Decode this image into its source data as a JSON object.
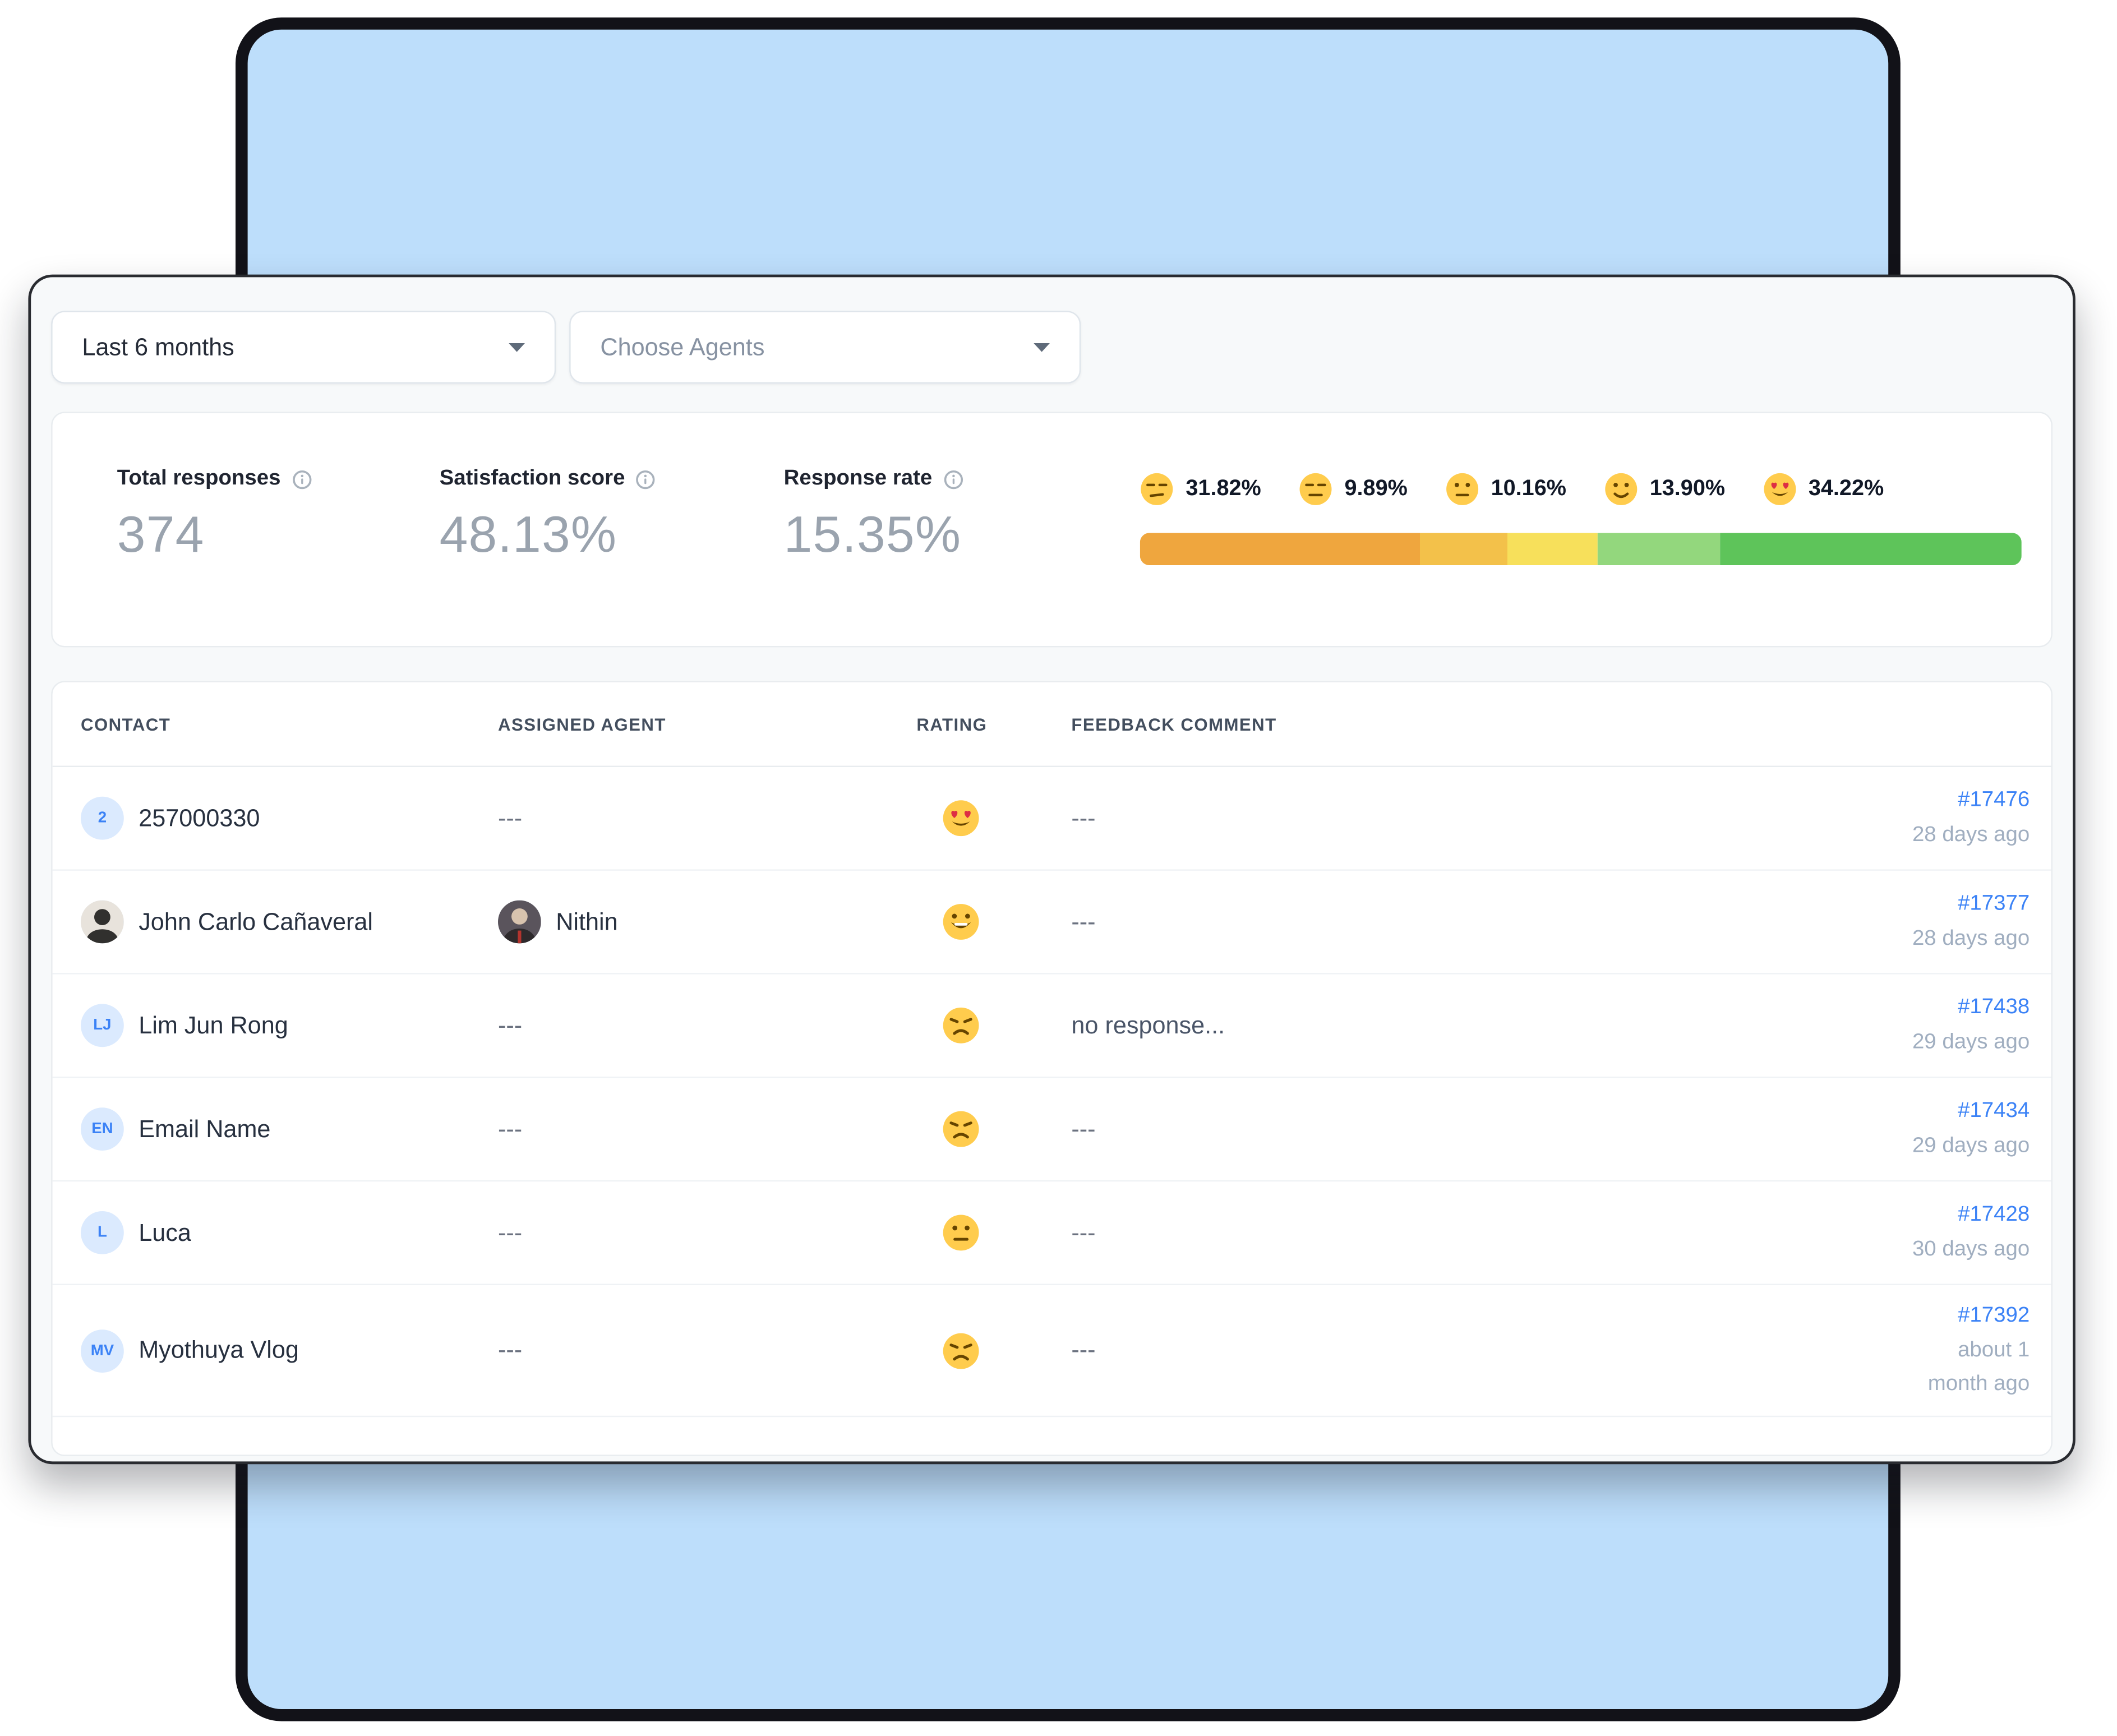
{
  "filters": {
    "date_range": {
      "value": "Last 6 months"
    },
    "agents": {
      "placeholder": "Choose Agents"
    }
  },
  "stats": {
    "total_responses": {
      "label": "Total responses",
      "value": "374"
    },
    "satisfaction_score": {
      "label": "Satisfaction score",
      "value": "48.13%"
    },
    "response_rate": {
      "label": "Response rate",
      "value": "15.35%"
    }
  },
  "rating_distribution": {
    "segments": [
      {
        "emoji": "unamused",
        "percent_label": "31.82%",
        "percent": 31.82,
        "color": "#EFA63E"
      },
      {
        "emoji": "expressionless",
        "percent_label": "9.89%",
        "percent": 9.89,
        "color": "#F3C14A"
      },
      {
        "emoji": "neutral",
        "percent_label": "10.16%",
        "percent": 10.16,
        "color": "#F7E05B"
      },
      {
        "emoji": "slight-smile",
        "percent_label": "13.90%",
        "percent": 13.9,
        "color": "#93D77D"
      },
      {
        "emoji": "heart-eyes",
        "percent_label": "34.22%",
        "percent": 34.22,
        "color": "#5EC45A"
      }
    ]
  },
  "table": {
    "headers": [
      "CONTACT",
      "ASSIGNED AGENT",
      "RATING",
      "FEEDBACK COMMENT"
    ],
    "rows": [
      {
        "contact": "257000330",
        "avatar": {
          "type": "initials",
          "text": "2"
        },
        "agent": "---",
        "rating": "heart-eyes",
        "feedback": "---",
        "ticket": "#17476",
        "date": "28 days ago"
      },
      {
        "contact": "John Carlo Cañaveral",
        "avatar": {
          "type": "photo"
        },
        "agent": "Nithin",
        "agent_avatar": {
          "type": "photo"
        },
        "rating": "grin",
        "feedback": "---",
        "ticket": "#17377",
        "date": "28 days ago"
      },
      {
        "contact": "Lim Jun Rong",
        "avatar": {
          "type": "initials",
          "text": "LJ"
        },
        "agent": "---",
        "rating": "sad",
        "feedback": "no response...",
        "ticket": "#17438",
        "date": "29 days ago"
      },
      {
        "contact": "Email Name",
        "avatar": {
          "type": "initials",
          "text": "EN"
        },
        "agent": "---",
        "rating": "sad",
        "feedback": "---",
        "ticket": "#17434",
        "date": "29 days ago"
      },
      {
        "contact": "Luca",
        "avatar": {
          "type": "initials",
          "text": "L"
        },
        "agent": "---",
        "rating": "neutral",
        "feedback": "---",
        "ticket": "#17428",
        "date": "30 days ago"
      },
      {
        "contact": "Myothuya Vlog",
        "avatar": {
          "type": "initials",
          "text": "MV"
        },
        "agent": "---",
        "rating": "sad",
        "feedback": "---",
        "ticket": "#17392",
        "date": "about 1 month ago"
      }
    ]
  },
  "theme": {
    "accent_blue": "#3B82F6",
    "background_blue": "#BDDEFB",
    "avatar_bg": "#DBEAFE",
    "emoji_yellow": "#FFCC4D",
    "heart_red": "#DD2E44"
  }
}
